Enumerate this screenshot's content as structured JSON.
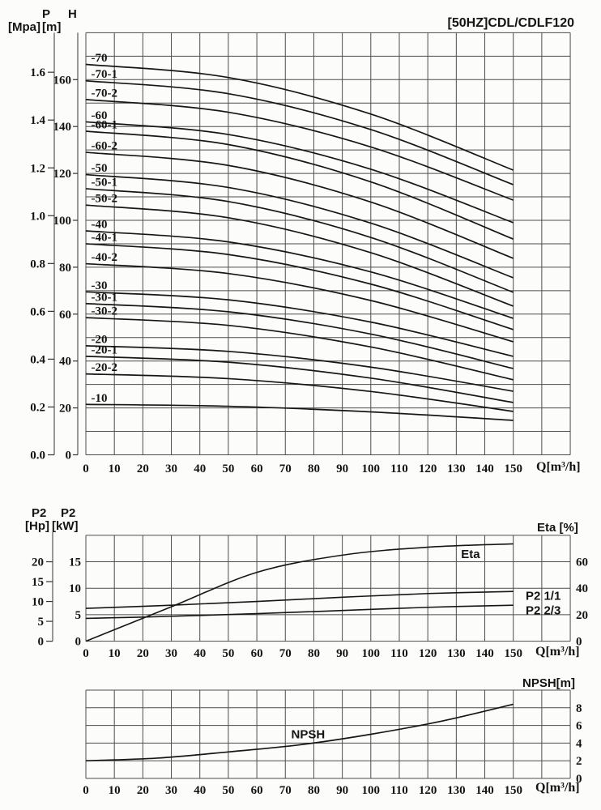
{
  "title": "[50HZ]CDL/CDLF120",
  "colors": {
    "ink": "#141414",
    "grid": "#4d4d4d",
    "curve": "#161616",
    "background": "#fcfcfb"
  },
  "chart_data": [
    {
      "id": "head",
      "type": "line",
      "title": "[50HZ]CDL/CDLF120",
      "x": {
        "label": "Q[m³/h]",
        "min": 0,
        "max": 170,
        "grid_step": 10,
        "tick_labels": [
          0,
          10,
          20,
          30,
          40,
          50,
          60,
          70,
          80,
          90,
          100,
          110,
          120,
          130,
          140,
          150
        ]
      },
      "y_left_primary": {
        "name": "P",
        "unit": "[Mpa]",
        "ticks": [
          "0.0",
          "0.2",
          "0.4",
          "0.6",
          "0.8",
          "1.0",
          "1.2",
          "1.4",
          "1.6"
        ]
      },
      "y_left_secondary": {
        "name": "H",
        "unit": "[m]",
        "min": 0,
        "max": 180,
        "grid_step": 10,
        "ticks": [
          0,
          20,
          40,
          60,
          80,
          100,
          120,
          140,
          160
        ]
      },
      "grid": true,
      "q_samples": [
        0,
        50,
        100,
        150
      ],
      "series": [
        {
          "label": "-70",
          "h": [
            166.5,
            160.9,
            145.3,
            121.4
          ]
        },
        {
          "label": "-70-1",
          "h": [
            159.5,
            154.0,
            138.7,
            115.2
          ]
        },
        {
          "label": "-70-2",
          "h": [
            151.5,
            146.1,
            131.3,
            108.6
          ]
        },
        {
          "label": "-60",
          "h": [
            142.0,
            136.6,
            121.8,
            99.0
          ]
        },
        {
          "label": "-60-1",
          "h": [
            138.0,
            132.3,
            116.4,
            92.0
          ]
        },
        {
          "label": "-60-2",
          "h": [
            129.0,
            123.4,
            107.8,
            83.8
          ]
        },
        {
          "label": "-50",
          "h": [
            119.5,
            114.0,
            98.8,
            75.5
          ]
        },
        {
          "label": "-50-1",
          "h": [
            113.5,
            108.0,
            92.7,
            69.3
          ]
        },
        {
          "label": "-50-2",
          "h": [
            106.5,
            101.1,
            86.2,
            63.4
          ]
        },
        {
          "label": "-40",
          "h": [
            95.5,
            90.8,
            78.0,
            58.2
          ]
        },
        {
          "label": "-40-1",
          "h": [
            90.0,
            85.4,
            72.8,
            53.4
          ]
        },
        {
          "label": "-40-2",
          "h": [
            81.5,
            77.3,
            65.8,
            48.2
          ]
        },
        {
          "label": "-30",
          "h": [
            69.5,
            66.1,
            56.6,
            42.0
          ]
        },
        {
          "label": "-30-1",
          "h": [
            64.5,
            61.0,
            51.5,
            36.8
          ]
        },
        {
          "label": "-30-2",
          "h": [
            58.5,
            55.2,
            46.0,
            32.0
          ]
        },
        {
          "label": "-20",
          "h": [
            46.5,
            44.1,
            37.4,
            27.1
          ]
        },
        {
          "label": "-20-1",
          "h": [
            42.0,
            39.5,
            32.7,
            22.3
          ]
        },
        {
          "label": "-20-2",
          "h": [
            34.5,
            32.5,
            27.0,
            18.5
          ]
        },
        {
          "label": "-10",
          "h": [
            21.5,
            20.7,
            18.3,
            14.7
          ]
        }
      ]
    },
    {
      "id": "power",
      "type": "line",
      "x": {
        "label": "Q[m³/h]",
        "min": 0,
        "max": 170,
        "grid_step": 10,
        "tick_labels": [
          0,
          10,
          20,
          30,
          40,
          50,
          60,
          70,
          80,
          90,
          100,
          110,
          120,
          130,
          140,
          150
        ]
      },
      "y_left_primary": {
        "name": "P2",
        "unit": "[Hp]",
        "ticks": [
          0,
          5,
          10,
          15,
          20
        ]
      },
      "y_left_secondary": {
        "name": "P2",
        "unit": "[kW]",
        "min": 0,
        "max": 20,
        "grid_step": 5,
        "ticks": [
          0,
          5,
          10,
          15
        ]
      },
      "y_right": {
        "label": "Eta [%]",
        "min": 0,
        "max": 80,
        "ticks": [
          0,
          20,
          40,
          60
        ]
      },
      "grid": true,
      "q_samples": [
        0,
        30,
        60,
        90,
        120,
        150
      ],
      "series": [
        {
          "label": "Eta",
          "axis": "eta",
          "v": [
            0,
            26,
            52,
            65,
            71,
            73.5
          ]
        },
        {
          "label": "P2 1/1",
          "axis": "kw",
          "v": [
            6.2,
            6.8,
            7.5,
            8.3,
            9.0,
            9.4
          ]
        },
        {
          "label": "P2 2/3",
          "axis": "kw",
          "v": [
            4.3,
            4.7,
            5.2,
            5.8,
            6.4,
            6.8
          ]
        }
      ],
      "annotations": [
        {
          "text": "Eta",
          "q": 135,
          "v": 65.8,
          "axis": "eta"
        },
        {
          "text": "P2 1/1",
          "q": 160.5,
          "v": 8.6,
          "axis": "kw"
        },
        {
          "text": "P2 2/3",
          "q": 160.5,
          "v": 5.85,
          "axis": "kw"
        }
      ]
    },
    {
      "id": "npsh",
      "type": "line",
      "x": {
        "label": "Q[m³/h]",
        "min": 0,
        "max": 170,
        "grid_step": 10,
        "tick_labels": [
          0,
          10,
          20,
          30,
          40,
          50,
          60,
          70,
          80,
          90,
          100,
          110,
          120,
          130,
          140,
          150
        ]
      },
      "y_right": {
        "label": "NPSH[m]",
        "min": 0,
        "max": 10,
        "grid_step": 2,
        "ticks": [
          0,
          2,
          4,
          6,
          8
        ]
      },
      "grid": true,
      "q_samples": [
        0,
        25,
        50,
        75,
        100,
        125,
        150
      ],
      "series": [
        {
          "label": "NPSH",
          "v": [
            2.0,
            2.3,
            3.0,
            3.8,
            5.0,
            6.5,
            8.4
          ]
        }
      ],
      "annotations": [
        {
          "text": "NPSH",
          "q": 78,
          "v": 5.0
        }
      ]
    }
  ],
  "headers": {
    "head_p_name": "P",
    "head_p_unit": "[Mpa]",
    "head_h_name": "H",
    "head_h_unit": "[m]",
    "head_q_unit": "Q[m³/h]",
    "power_hp_name": "P2",
    "power_hp_unit": "[Hp]",
    "power_kw_name": "P2",
    "power_kw_unit": "[kW]",
    "power_eta_title": "Eta [%]",
    "power_q_unit": "Q[m³/h]",
    "npsh_title": "NPSH[m]",
    "npsh_q_unit": "Q[m³/h]"
  }
}
